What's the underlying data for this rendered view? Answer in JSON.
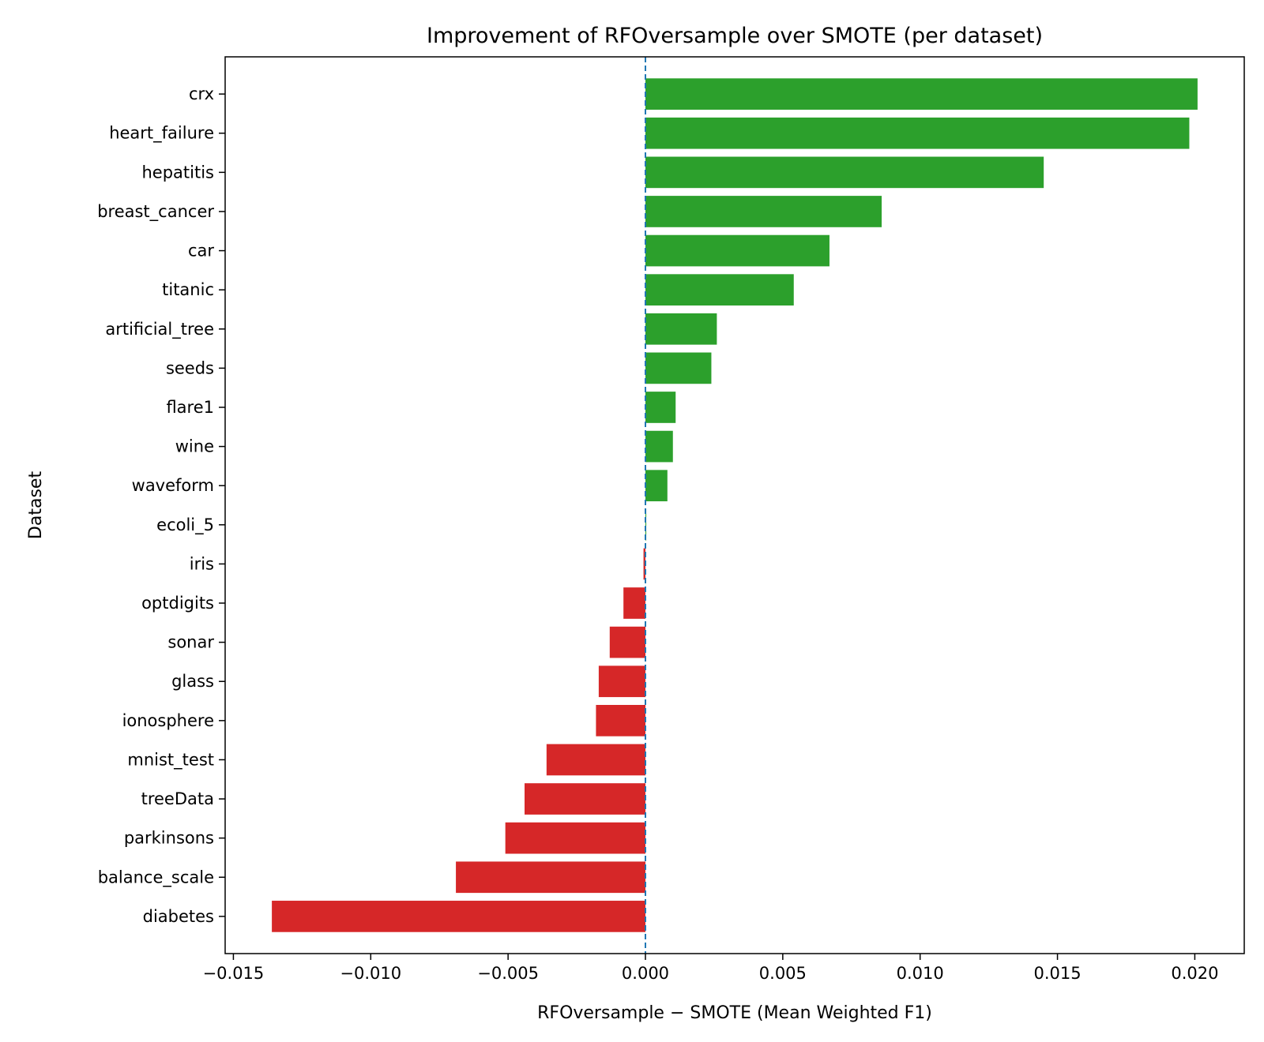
{
  "chart_data": {
    "type": "bar",
    "orientation": "horizontal",
    "title": "Improvement of RFOversample over SMOTE (per dataset)",
    "xlabel": "RFOversample − SMOTE (Mean Weighted F1)",
    "ylabel": "Dataset",
    "xlim": [
      -0.0153,
      0.0218
    ],
    "xticks": [
      -0.015,
      -0.01,
      -0.005,
      0.0,
      0.005,
      0.01,
      0.015,
      0.02
    ],
    "xtick_labels": [
      "−0.015",
      "−0.010",
      "−0.005",
      "0.000",
      "0.005",
      "0.010",
      "0.015",
      "0.020"
    ],
    "reference_line": {
      "x": 0,
      "style": "dashed",
      "color": "#1f77b4"
    },
    "positive_color": "#2ca02c",
    "negative_color": "#d62728",
    "grid": false,
    "categories": [
      "crx",
      "heart_failure",
      "hepatitis",
      "breast_cancer",
      "car",
      "titanic",
      "artificial_tree",
      "seeds",
      "flare1",
      "wine",
      "waveform",
      "ecoli_5",
      "iris",
      "optdigits",
      "sonar",
      "glass",
      "ionosphere",
      "mnist_test",
      "treeData",
      "parkinsons",
      "balance_scale",
      "diabetes"
    ],
    "values": [
      0.0201,
      0.0198,
      0.0145,
      0.0086,
      0.0067,
      0.0054,
      0.0026,
      0.0024,
      0.0011,
      0.001,
      0.0008,
      3e-05,
      -7e-05,
      -0.0008,
      -0.0013,
      -0.0017,
      -0.0018,
      -0.0036,
      -0.0044,
      -0.0051,
      -0.0069,
      -0.0136
    ]
  }
}
